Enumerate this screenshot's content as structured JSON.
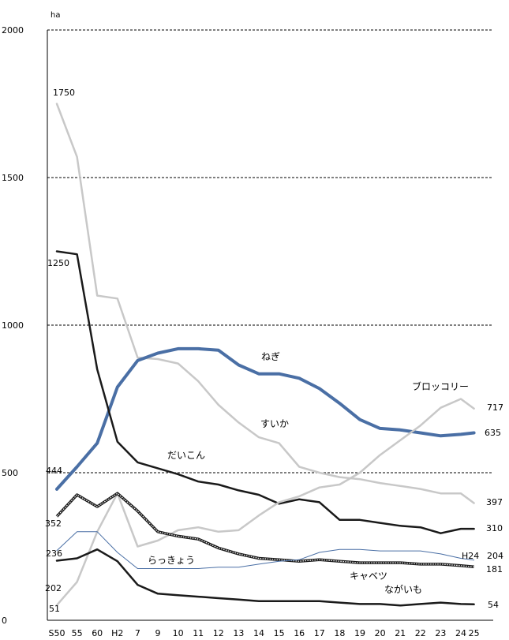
{
  "chart_data": {
    "type": "line",
    "unit_label": "ha",
    "title": "",
    "xlabel": "",
    "ylabel": "",
    "ylim": [
      0,
      2000
    ],
    "yticks": [
      0,
      500,
      1000,
      1500,
      2000
    ],
    "grid": "horizontal dashed",
    "categories": [
      "S50",
      "55",
      "60",
      "H2",
      "7",
      "9",
      "10",
      "11",
      "12",
      "13",
      "14",
      "15",
      "16",
      "17",
      "18",
      "19",
      "20",
      "21",
      "22",
      "23",
      "24",
      "25"
    ],
    "x_positions": [
      0,
      1,
      2,
      3,
      4,
      5,
      6,
      7,
      8,
      9,
      10,
      11,
      12,
      13,
      14,
      15,
      16,
      17,
      18,
      19,
      20,
      20.65
    ],
    "series": [
      {
        "name": "すいか",
        "color": "#c8c8c8",
        "style": "solid",
        "width": 2.5,
        "values": [
          1750,
          1570,
          1100,
          1090,
          890,
          885,
          870,
          810,
          730,
          670,
          620,
          600,
          520,
          500,
          485,
          478,
          465,
          455,
          445,
          430,
          430,
          397
        ]
      },
      {
        "name": "ねぎ",
        "color": "#4a6fa5",
        "style": "solid",
        "width": 4,
        "values": [
          444,
          520,
          600,
          790,
          880,
          905,
          920,
          920,
          915,
          865,
          835,
          835,
          820,
          785,
          735,
          680,
          650,
          645,
          635,
          625,
          630,
          635
        ]
      },
      {
        "name": "だいこん",
        "color": "#1a1a1a",
        "style": "solid",
        "width": 2.5,
        "values": [
          1250,
          1240,
          850,
          605,
          535,
          515,
          495,
          470,
          460,
          440,
          425,
          395,
          410,
          400,
          340,
          340,
          330,
          320,
          315,
          295,
          310,
          310
        ]
      },
      {
        "name": "ブロッコリー",
        "color": "#c8c8c8",
        "style": "solid",
        "width": 2.5,
        "values": [
          51,
          130,
          300,
          430,
          250,
          270,
          305,
          315,
          300,
          305,
          355,
          400,
          420,
          450,
          460,
          500,
          560,
          610,
          660,
          720,
          750,
          717
        ]
      },
      {
        "name": "キャベツ",
        "color": "#1a1a1a",
        "style": "dotted",
        "width": 3.5,
        "values": [
          352,
          425,
          385,
          430,
          370,
          300,
          285,
          275,
          245,
          225,
          210,
          205,
          200,
          205,
          200,
          195,
          195,
          195,
          190,
          190,
          185,
          181
        ]
      },
      {
        "name": "らっきょう",
        "color": "#4a6fa5",
        "style": "solid",
        "width": 1,
        "values": [
          236,
          300,
          300,
          230,
          175,
          175,
          175,
          175,
          180,
          180,
          190,
          200,
          205,
          230,
          240,
          240,
          235,
          235,
          235,
          225,
          210,
          204
        ]
      },
      {
        "name": "ながいも",
        "color": "#1a1a1a",
        "style": "solid",
        "width": 2.5,
        "values": [
          202,
          210,
          240,
          200,
          120,
          90,
          85,
          80,
          75,
          70,
          65,
          65,
          65,
          65,
          60,
          55,
          55,
          50,
          55,
          60,
          55,
          54
        ]
      }
    ],
    "series_labels": [
      {
        "series": "ねぎ",
        "text": "ねぎ"
      },
      {
        "series": "すいか",
        "text": "すいか"
      },
      {
        "series": "だいこん",
        "text": "だいこん"
      },
      {
        "series": "ブロッコリー",
        "text": "ブロッコリー"
      },
      {
        "series": "らっきょう",
        "text": "らっきょう"
      },
      {
        "series": "キャベツ",
        "text": "キャベツ"
      },
      {
        "series": "ながいも",
        "text": "ながいも"
      }
    ],
    "start_labels": [
      "1750",
      "1250",
      "444",
      "352",
      "236",
      "202",
      "51"
    ],
    "end_labels": [
      "717",
      "635",
      "397",
      "310",
      "204",
      "181",
      "54"
    ],
    "extra_label": "H24"
  }
}
